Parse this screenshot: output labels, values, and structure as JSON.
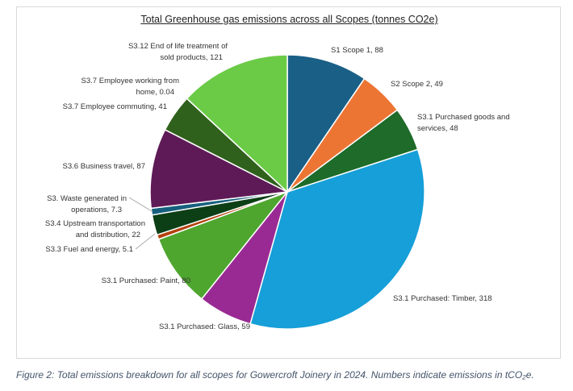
{
  "chart_data": {
    "type": "pie",
    "title": "Total Greenhouse gas emissions across all Scopes (tonnes CO2e)",
    "slices": [
      {
        "label": "S1 Scope 1",
        "value": 88,
        "color": "#1a5f86"
      },
      {
        "label": "S2 Scope 2",
        "value": 49,
        "color": "#ed7534"
      },
      {
        "label": "S3.1 Purchased goods and services",
        "value": 48,
        "color": "#1e6b2a"
      },
      {
        "label": "S3.1 Purchased: Timber",
        "value": 318,
        "color": "#169fd8"
      },
      {
        "label": "S3.1 Purchased: Glass",
        "value": 59,
        "color": "#9a2a93"
      },
      {
        "label": "S3.1 Purchased: Paint",
        "value": 80,
        "color": "#4ea62f"
      },
      {
        "label": "S3.3 Fuel and energy",
        "value": 5.1,
        "color": "#b5420e"
      },
      {
        "label": "S3.4 Upstream transportation and distribution",
        "value": 22,
        "color": "#0c3f16"
      },
      {
        "label": "S3. Waste generated in operations",
        "value": 7.3,
        "color": "#16607e"
      },
      {
        "label": "S3.6 Business travel",
        "value": 87,
        "color": "#5e1a57"
      },
      {
        "label": "S3.7 Employee commuting",
        "value": 41,
        "color": "#2f611c"
      },
      {
        "label": "S3.7 Employee working from home",
        "value": 0.04,
        "color": "#8a8a8a"
      },
      {
        "label": "S3.12 End of life treatment of sold products",
        "value": 121,
        "color": "#6bcb47"
      }
    ],
    "data_labels": [
      [
        "S1 Scope 1, 88"
      ],
      [
        "S2 Scope 2, 49"
      ],
      [
        "S3.1 Purchased goods and",
        "services, 48"
      ],
      [
        "S3.1 Purchased: Timber, 318"
      ],
      [
        "S3.1 Purchased: Glass, 59"
      ],
      [
        "S3.1 Purchased: Paint, 80"
      ],
      [
        "S3.3 Fuel and energy, 5.1"
      ],
      [
        "S3.4 Upstream transportation",
        "and distribution, 22"
      ],
      [
        "S3. Waste generated in",
        "operations, 7.3"
      ],
      [
        "S3.6 Business travel, 87"
      ],
      [
        "S3.7 Employee commuting, 41"
      ],
      [
        "S3.7 Employee working from",
        "home, 0.04"
      ],
      [
        "S3.12 End of life treatment of",
        "sold products, 121"
      ]
    ],
    "legend": "none"
  },
  "caption": "Figure 2: Total emissions breakdown for all scopes for Gowercroft Joinery in 2024. Numbers indicate emissions in tCO₂e."
}
